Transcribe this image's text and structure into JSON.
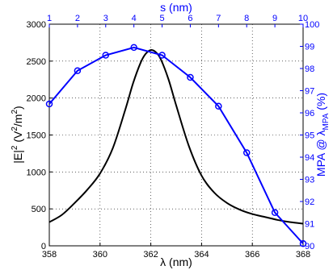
{
  "chart_data": {
    "type": "line",
    "grid": true,
    "colors": {
      "field_curve": "#000000",
      "mpa_curve": "#0000ff",
      "grid": "#000000",
      "frame": "#000000"
    },
    "bottom_axis": {
      "label": "λ (nm)",
      "range": [
        358,
        368
      ],
      "ticks": [
        "358",
        "360",
        "362",
        "364",
        "366",
        "368"
      ]
    },
    "left_axis": {
      "label_main": "|E|",
      "label_exp": "2",
      "label_units_open": " (V",
      "label_units_exp": "2",
      "label_units_mid": "/m",
      "label_units_exp2": "2",
      "label_units_close": ")",
      "range": [
        0,
        3000
      ],
      "ticks": [
        "0",
        "500",
        "1000",
        "1500",
        "2000",
        "2500",
        "3000"
      ]
    },
    "top_axis": {
      "label": "s (nm)",
      "range": [
        1,
        10
      ],
      "ticks": [
        "1",
        "2",
        "3",
        "4",
        "5",
        "6",
        "7",
        "8",
        "9",
        "10"
      ]
    },
    "right_axis": {
      "label_main": "MPA @ λ",
      "label_sub": "MPA",
      "label_close": " (%)",
      "range": [
        90,
        100
      ],
      "ticks": [
        "90",
        "91",
        "92",
        "93",
        "94",
        "95",
        "96",
        "97",
        "98",
        "99",
        "100"
      ]
    },
    "series": [
      {
        "axes": "bottom-left",
        "color": "#000000",
        "marker": "none",
        "x": [
          358,
          358.5,
          359,
          359.5,
          360,
          360.5,
          361,
          361.3,
          361.6,
          361.8,
          362,
          362.2,
          362.4,
          362.7,
          363,
          363.5,
          364,
          364.5,
          365,
          365.5,
          366,
          366.5,
          367,
          367.5,
          368
        ],
        "y": [
          320,
          420,
          580,
          760,
          980,
          1320,
          1850,
          2200,
          2480,
          2600,
          2650,
          2620,
          2520,
          2250,
          1900,
          1350,
          950,
          720,
          580,
          490,
          430,
          390,
          350,
          320,
          300
        ]
      },
      {
        "axes": "top-right",
        "color": "#0000ff",
        "marker": "circle",
        "x": [
          1,
          2,
          3,
          4,
          5,
          6,
          7,
          8,
          9,
          10
        ],
        "y": [
          96.4,
          97.9,
          98.6,
          98.95,
          98.6,
          97.6,
          96.3,
          94.2,
          91.5,
          90.1
        ]
      }
    ]
  }
}
